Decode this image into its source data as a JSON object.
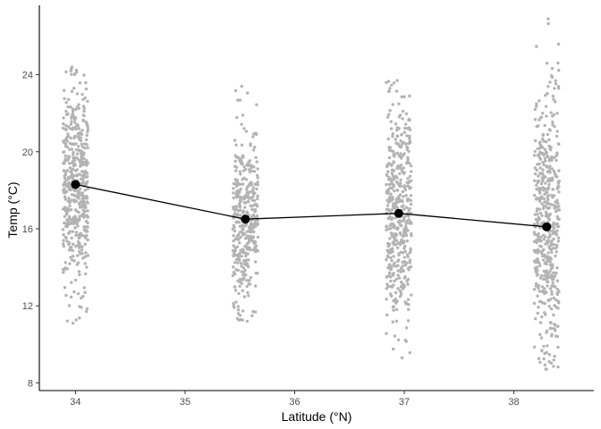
{
  "chart_data": {
    "type": "scatter",
    "xlabel": "Latitude (°N)",
    "ylabel": "Temp (°C)",
    "xlim": [
      33.67,
      38.73
    ],
    "ylim": [
      7.6,
      27.6
    ],
    "xticks": [
      34,
      35,
      36,
      37,
      38
    ],
    "yticks": [
      8,
      12,
      16,
      20,
      24
    ],
    "grid": false,
    "legend": "none",
    "colors": {
      "points": "#b3b3b3",
      "mean_line": "#000000",
      "mean_points": "#000000"
    },
    "series": [
      {
        "role": "raw observations (jittered strips)",
        "groups": [
          {
            "x": 34.0,
            "n": 500,
            "min": 11.1,
            "max": 24.4,
            "mean": 18.3
          },
          {
            "x": 35.55,
            "n": 400,
            "min": 11.2,
            "max": 23.4,
            "mean": 16.5
          },
          {
            "x": 36.95,
            "n": 450,
            "min": 9.3,
            "max": 23.7,
            "mean": 16.8
          },
          {
            "x": 38.3,
            "n": 500,
            "min": 8.7,
            "max": 26.9,
            "mean": 16.1
          }
        ]
      },
      {
        "role": "group means",
        "x": [
          34.0,
          35.55,
          36.95,
          38.3
        ],
        "y": [
          18.3,
          16.5,
          16.8,
          16.1
        ]
      }
    ]
  }
}
